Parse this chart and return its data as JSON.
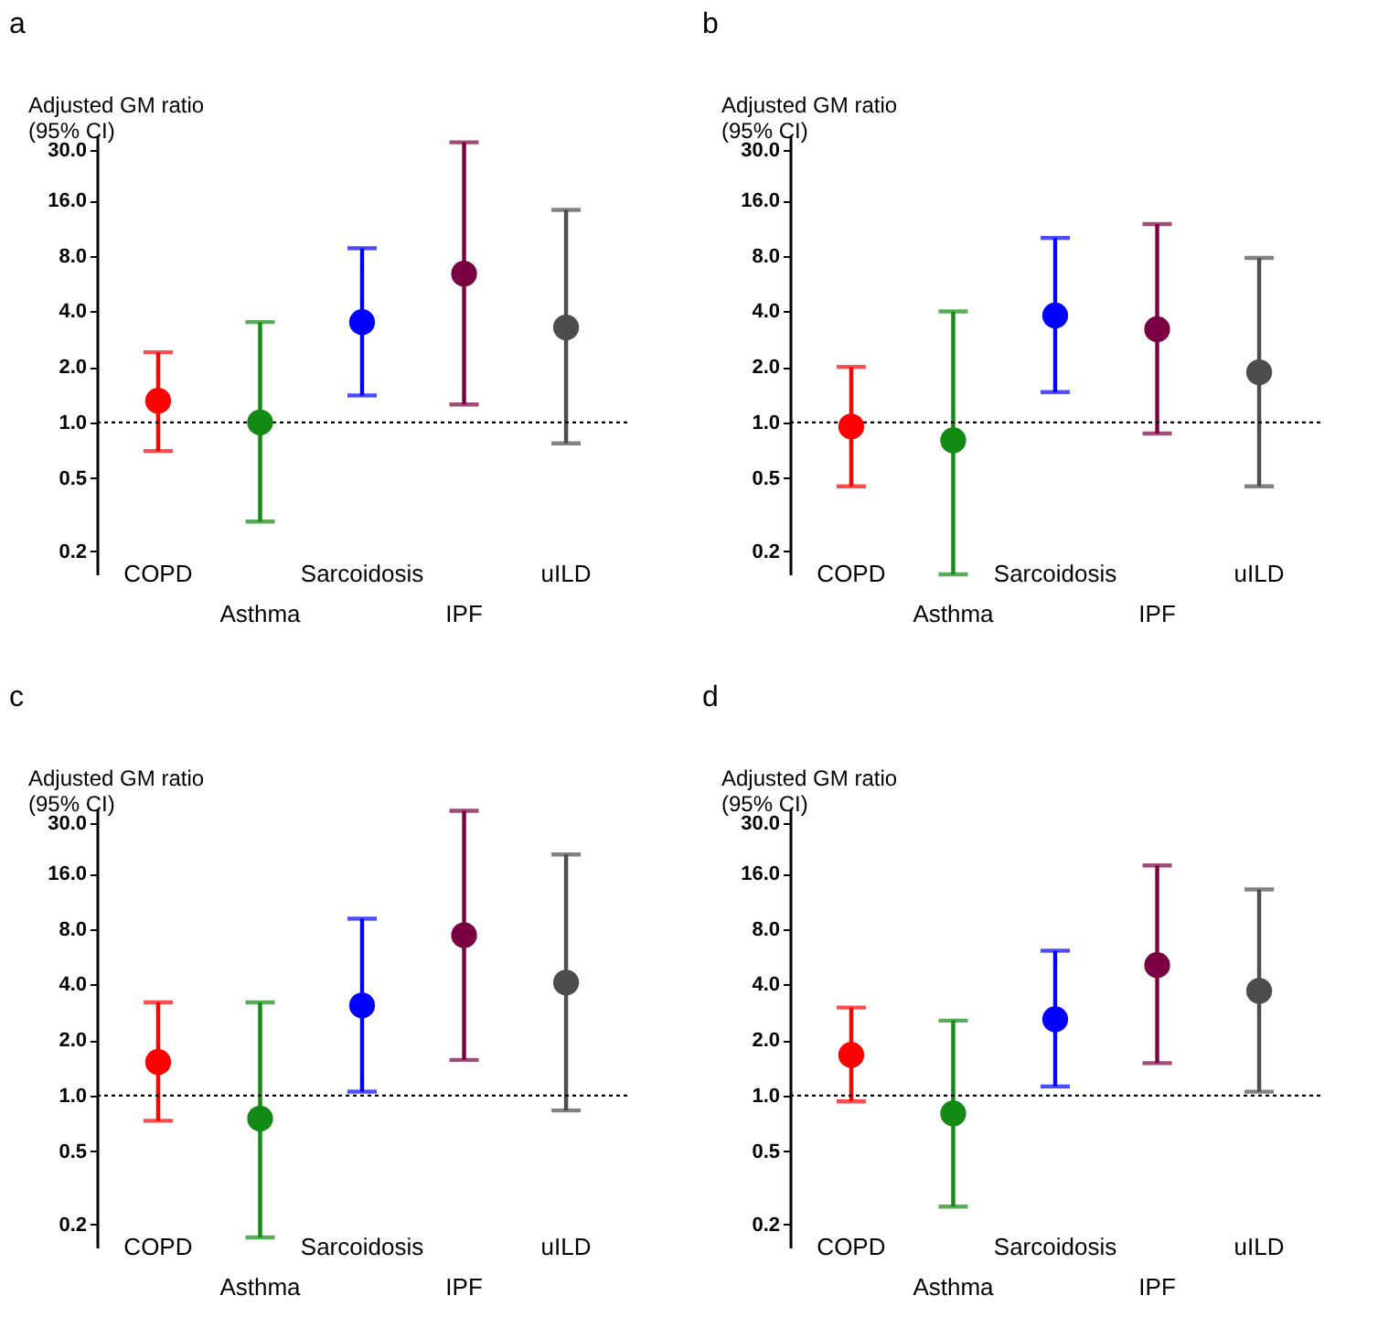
{
  "chart_data": [
    {
      "type": "scatter",
      "title": "a",
      "ylabel": "Adjusted GM ratio\n (95% CI)",
      "categories": [
        "COPD",
        "Asthma",
        "Sarcoidosis",
        "IPF",
        "uILD"
      ],
      "values": [
        1.31,
        1.0,
        3.5,
        6.4,
        3.27
      ],
      "errors": [
        [
          0.7,
          2.4
        ],
        [
          0.29,
          3.5
        ],
        [
          1.4,
          8.8
        ],
        [
          1.25,
          33
        ],
        [
          0.77,
          14.2
        ]
      ],
      "colors": [
        "#ff0000",
        "#138a13",
        "#0000ff",
        "#7b0041",
        "#4d4d4d"
      ],
      "marker": "circle",
      "log": "y",
      "grid": false,
      "ylim": [
        0.15,
        36
      ],
      "yticks": [
        {
          "value": 0.2,
          "label": "0.2"
        },
        {
          "value": 0.5,
          "label": "0.5"
        },
        {
          "value": 1,
          "label": "1.0"
        },
        {
          "value": 2,
          "label": "2.0"
        },
        {
          "value": 4,
          "label": "4.0"
        },
        {
          "value": 8,
          "label": "8.0"
        },
        {
          "value": 16,
          "label": "16.0"
        },
        {
          "value": 30,
          "label": "30.0"
        }
      ],
      "ref_lines": [
        {
          "axis": "y",
          "value": 1,
          "color": "#000000",
          "line_style": "dotted"
        }
      ]
    },
    {
      "type": "scatter",
      "title": "b",
      "ylabel": "Adjusted GM ratio\n (95% CI)",
      "categories": [
        "COPD",
        "Asthma",
        "Sarcoidosis",
        "IPF",
        "uILD"
      ],
      "values": [
        0.95,
        0.8,
        3.8,
        3.2,
        1.87
      ],
      "errors": [
        [
          0.45,
          2.0
        ],
        [
          0.15,
          4.0
        ],
        [
          1.46,
          10.0
        ],
        [
          0.87,
          11.9
        ],
        [
          0.45,
          7.8
        ]
      ],
      "colors": [
        "#ff0000",
        "#138a13",
        "#0000ff",
        "#7b0041",
        "#4d4d4d"
      ],
      "marker": "circle",
      "log": "y",
      "grid": false,
      "ylim": [
        0.15,
        36
      ],
      "yticks": [
        {
          "value": 0.2,
          "label": "0.2"
        },
        {
          "value": 0.5,
          "label": "0.5"
        },
        {
          "value": 1,
          "label": "1.0"
        },
        {
          "value": 2,
          "label": "2.0"
        },
        {
          "value": 4,
          "label": "4.0"
        },
        {
          "value": 8,
          "label": "8.0"
        },
        {
          "value": 16,
          "label": "16.0"
        },
        {
          "value": 30,
          "label": "30.0"
        }
      ],
      "ref_lines": [
        {
          "axis": "y",
          "value": 1,
          "color": "#000000",
          "line_style": "dotted"
        }
      ]
    },
    {
      "type": "scatter",
      "title": "c",
      "ylabel": "Adjusted GM ratio\n (95% CI)",
      "categories": [
        "COPD",
        "Asthma",
        "Sarcoidosis",
        "IPF",
        "uILD"
      ],
      "values": [
        1.52,
        0.75,
        3.08,
        7.4,
        4.1
      ],
      "errors": [
        [
          0.73,
          3.2
        ],
        [
          0.17,
          3.2
        ],
        [
          1.05,
          9.1
        ],
        [
          1.56,
          35
        ],
        [
          0.83,
          20.3
        ]
      ],
      "colors": [
        "#ff0000",
        "#138a13",
        "#0000ff",
        "#7b0041",
        "#4d4d4d"
      ],
      "marker": "circle",
      "log": "y",
      "grid": false,
      "ylim": [
        0.15,
        36
      ],
      "yticks": [
        {
          "value": 0.2,
          "label": "0.2"
        },
        {
          "value": 0.5,
          "label": "0.5"
        },
        {
          "value": 1,
          "label": "1.0"
        },
        {
          "value": 2,
          "label": "2.0"
        },
        {
          "value": 4,
          "label": "4.0"
        },
        {
          "value": 8,
          "label": "8.0"
        },
        {
          "value": 16,
          "label": "16.0"
        },
        {
          "value": 30,
          "label": "30.0"
        }
      ],
      "ref_lines": [
        {
          "axis": "y",
          "value": 1,
          "color": "#000000",
          "line_style": "dotted"
        }
      ]
    },
    {
      "type": "scatter",
      "title": "d",
      "ylabel": "Adjusted GM ratio\n (95% CI)",
      "categories": [
        "COPD",
        "Asthma",
        "Sarcoidosis",
        "IPF",
        "uILD"
      ],
      "values": [
        1.66,
        0.8,
        2.59,
        5.1,
        3.69
      ],
      "errors": [
        [
          0.93,
          3.0
        ],
        [
          0.25,
          2.55
        ],
        [
          1.12,
          6.1
        ],
        [
          1.5,
          17.7
        ],
        [
          1.05,
          13.1
        ]
      ],
      "colors": [
        "#ff0000",
        "#138a13",
        "#0000ff",
        "#7b0041",
        "#4d4d4d"
      ],
      "marker": "circle",
      "log": "y",
      "grid": false,
      "ylim": [
        0.15,
        36
      ],
      "yticks": [
        {
          "value": 0.2,
          "label": "0.2"
        },
        {
          "value": 0.5,
          "label": "0.5"
        },
        {
          "value": 1,
          "label": "1.0"
        },
        {
          "value": 2,
          "label": "2.0"
        },
        {
          "value": 4,
          "label": "4.0"
        },
        {
          "value": 8,
          "label": "8.0"
        },
        {
          "value": 16,
          "label": "16.0"
        },
        {
          "value": 30,
          "label": "30.0"
        }
      ],
      "ref_lines": [
        {
          "axis": "y",
          "value": 1,
          "color": "#000000",
          "line_style": "dotted"
        }
      ]
    }
  ]
}
